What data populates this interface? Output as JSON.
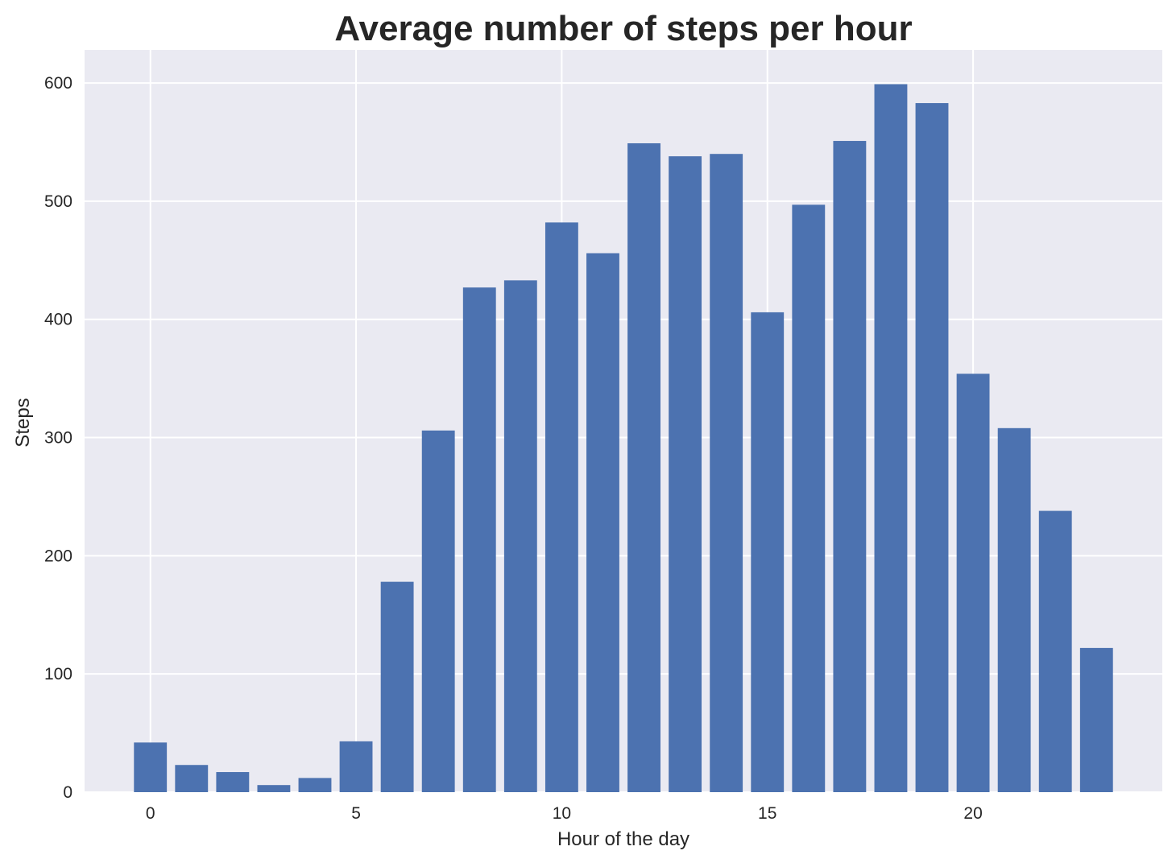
{
  "chart_data": {
    "type": "bar",
    "title": "Average number of steps per hour",
    "xlabel": "Hour of the day",
    "ylabel": "Steps",
    "categories": [
      0,
      1,
      2,
      3,
      4,
      5,
      6,
      7,
      8,
      9,
      10,
      11,
      12,
      13,
      14,
      15,
      16,
      17,
      18,
      19,
      20,
      21,
      22,
      23
    ],
    "values": [
      42,
      23,
      17,
      6,
      12,
      43,
      178,
      306,
      427,
      433,
      482,
      456,
      549,
      538,
      540,
      406,
      497,
      551,
      599,
      583,
      354,
      308,
      238,
      122
    ],
    "xlim": [
      -1.6,
      24.6
    ],
    "ylim": [
      0,
      628
    ],
    "xticks": [
      0,
      5,
      10,
      15,
      20
    ],
    "yticks": [
      0,
      100,
      200,
      300,
      400,
      500,
      600
    ],
    "grid": true,
    "colors": {
      "bar": "#4c72b0",
      "plot_bg": "#eaeaf2",
      "grid": "#ffffff"
    }
  }
}
